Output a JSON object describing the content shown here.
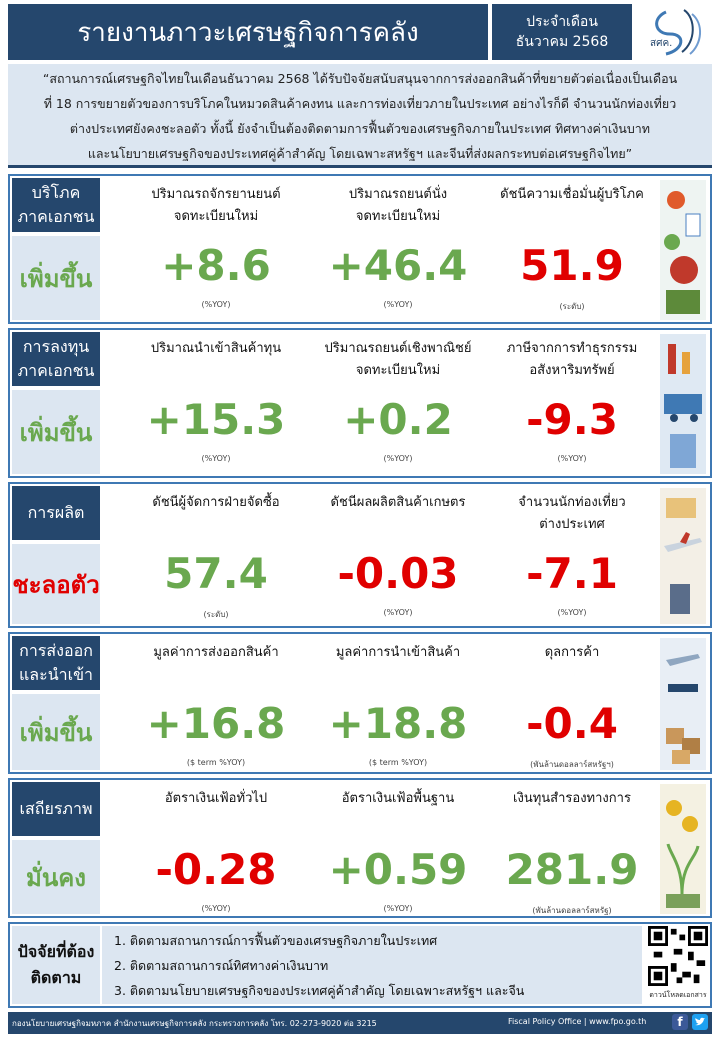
{
  "header": {
    "title": "รายงานภาวะเศรษฐกิจการคลัง",
    "period_label": "ประจำเดือน",
    "period_value": "ธันวาคม 2568",
    "logo_text": "สศค."
  },
  "intro": {
    "lines": [
      "“สถานการณ์เศรษฐกิจไทยในเดือนธันวาคม  2568 ได้รับปัจจัยสนับสนุนจากการส่งออกสินค้าที่ขยายตัวต่อเนื่องเป็นเดือน",
      "ที่ 18 การขยายตัวของการบริโภคในหมวดสินค้าคงทน  และการท่องเที่ยวภายในประเทศ  อย่างไรก็ดี  จำนวนนักท่องเที่ยว",
      "ต่างประเทศยังคงชะลอตัว   ทั้งนี้ ยังจำเป็นต้องติดตามการฟื้นตัวของเศรษฐกิจภายในประเทศ  ทิศทางค่าเงินบาท",
      "และนโยบายเศรษฐกิจของประเทศคู่ค้าสำคัญ  โดยเฉพาะสหรัฐฯ  และจีนที่ส่งผลกระทบต่อเศรษฐกิจไทย”"
    ]
  },
  "sections": [
    {
      "title_lines": [
        "บริโภค",
        "ภาคเอกชน"
      ],
      "status": "เพิ่มขึ้น",
      "metrics": [
        {
          "label_lines": [
            "ปริมาณรถจักรยานยนต์",
            "จดทะเบียนใหม่"
          ],
          "value": "+8.6",
          "unit": "(%YOY)"
        },
        {
          "label_lines": [
            "ปริมาณรถยนต์นั่ง",
            "จดทะเบียนใหม่"
          ],
          "value": "+46.4",
          "unit": "(%YOY)"
        },
        {
          "label_lines": [
            "ดัชนีความเชื่อมั่นผู้บริโภค",
            ""
          ],
          "value": "51.9",
          "unit": "(ระดับ)"
        }
      ]
    },
    {
      "title_lines": [
        "การลงทุน",
        "ภาคเอกชน"
      ],
      "status": "เพิ่มขึ้น",
      "metrics": [
        {
          "label_lines": [
            "ปริมาณนำเข้าสินค้าทุน",
            ""
          ],
          "value": "+15.3",
          "unit": "(%YOY)"
        },
        {
          "label_lines": [
            "ปริมาณรถยนต์เชิงพาณิชย์",
            "จดทะเบียนใหม่"
          ],
          "value": "+0.2",
          "unit": "(%YOY)"
        },
        {
          "label_lines": [
            "ภาษีจากการทำธุรกรรม",
            "อสังหาริมทรัพย์"
          ],
          "value": "-9.3",
          "unit": "(%YOY)"
        }
      ]
    },
    {
      "title_lines": [
        "การผลิต"
      ],
      "status": "ชะลอตัว",
      "metrics": [
        {
          "label_lines": [
            "ดัชนีผู้จัดการฝ่ายจัดซื้อ",
            ""
          ],
          "value": "57.4",
          "unit": "(ระดับ)"
        },
        {
          "label_lines": [
            "ดัชนีผลผลิตสินค้าเกษตร",
            ""
          ],
          "value": "-0.03",
          "unit": "(%YOY)"
        },
        {
          "label_lines": [
            "จำนวนนักท่องเที่ยว",
            "ต่างประเทศ"
          ],
          "value": "-7.1",
          "unit": "(%YOY)"
        }
      ]
    },
    {
      "title_lines": [
        "การส่งออก",
        "และนำเข้า"
      ],
      "status": "เพิ่มขึ้น",
      "metrics": [
        {
          "label_lines": [
            "มูลค่าการส่งออกสินค้า",
            ""
          ],
          "value": "+16.8",
          "unit": "($ term  %YOY)"
        },
        {
          "label_lines": [
            "มูลค่าการนำเข้าสินค้า",
            ""
          ],
          "value": "+18.8",
          "unit": "($ term  %YOY)"
        },
        {
          "label_lines": [
            "ดุลการค้า",
            ""
          ],
          "value": "-0.4",
          "unit": "(พันล้านดอลลาร์สหรัฐฯ)"
        }
      ]
    },
    {
      "title_lines": [
        "เสถียรภาพ"
      ],
      "status": "มั่นคง",
      "metrics": [
        {
          "label_lines": [
            "อัตราเงินเฟ้อทั่วไป",
            ""
          ],
          "value": "-0.28",
          "unit": "(%YOY)"
        },
        {
          "label_lines": [
            "อัตราเงินเฟ้อพื้นฐาน",
            ""
          ],
          "value": "+0.59",
          "unit": "(%YOY)"
        },
        {
          "label_lines": [
            "เงินทุนสำรองทางการ",
            ""
          ],
          "value": "281.9",
          "unit": "(พันล้านดอลลาร์สหรัฐ)"
        }
      ]
    }
  ],
  "factors": {
    "title_lines": [
      "ปัจจัยที่ต้อง",
      "ติดตาม"
    ],
    "items": [
      "1. ติดตามสถานการณ์การฟื้นตัวของเศรษฐกิจภายในประเทศ",
      "2. ติดตามสถานการณ์ทิศทางค่าเงินบาท",
      "3. ติดตามนโยบายเศรษฐกิจของประเทศคู่ค้าสำคัญ  โดยเฉพาะสหรัฐฯ  และจีน"
    ],
    "qr_caption": "ดาวน์โหลดเอกสาร"
  },
  "footer": {
    "left": "กองนโยบายเศรษฐกิจมหภาค สำนักงานเศรษฐกิจการคลัง กระทรวงการคลัง โทร. 02-273-9020 ต่อ 3215",
    "right": "Fiscal Policy Office | www.fpo.go.th"
  },
  "colors": {
    "navy": "#25476d",
    "light_blue": "#dce6f1",
    "border_blue": "#3f79b4",
    "positive": "#6aa84f",
    "negative": "#e00000"
  }
}
